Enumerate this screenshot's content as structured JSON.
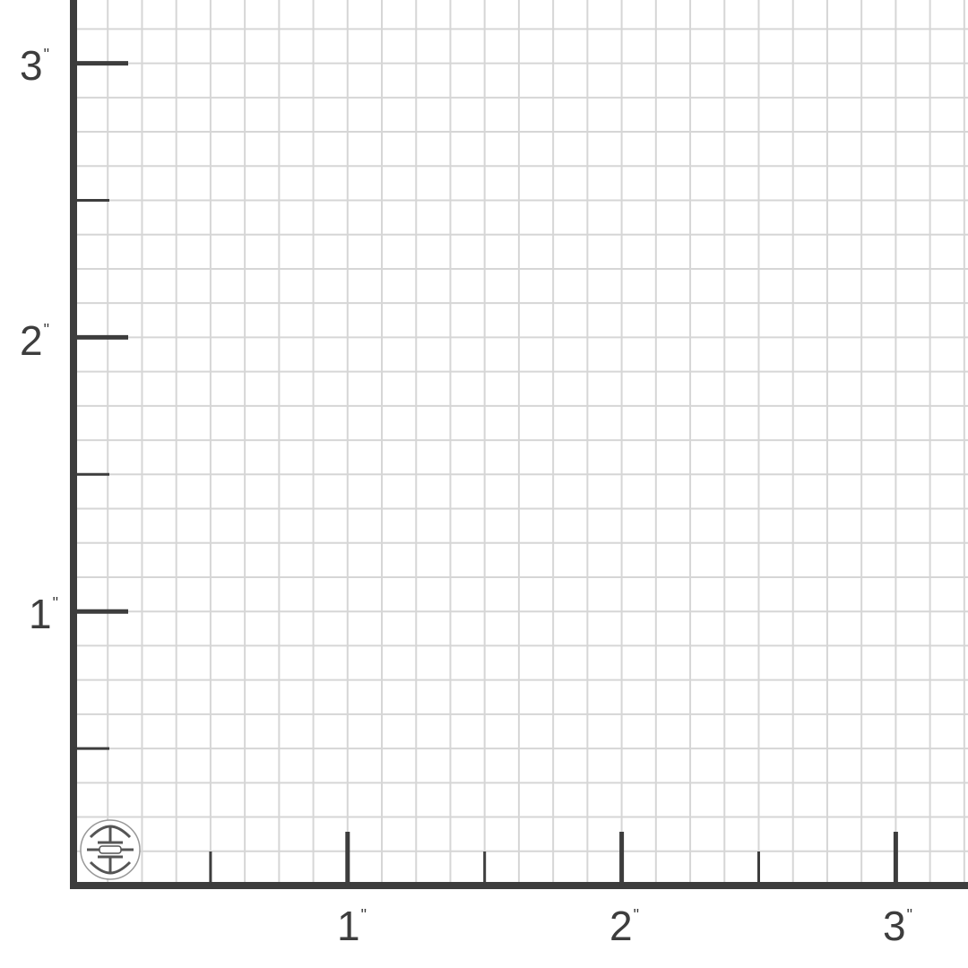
{
  "units_per_inch_subdivisions": 8,
  "colors": {
    "grid": "#d6d6d6",
    "axis": "#3d3d3d",
    "background": "#ffffff"
  },
  "x_axis": {
    "ticks": [
      {
        "value": 1,
        "label": "1",
        "unit": "\""
      },
      {
        "value": 2,
        "label": "2",
        "unit": "\""
      },
      {
        "value": 3,
        "label": "3",
        "unit": "\""
      }
    ]
  },
  "y_axis": {
    "ticks": [
      {
        "value": 1,
        "label": "1",
        "unit": "\""
      },
      {
        "value": 2,
        "label": "2",
        "unit": "\""
      },
      {
        "value": 3,
        "label": "3",
        "unit": "\""
      }
    ]
  },
  "logo": {
    "icon": "shou-longevity-symbol"
  }
}
